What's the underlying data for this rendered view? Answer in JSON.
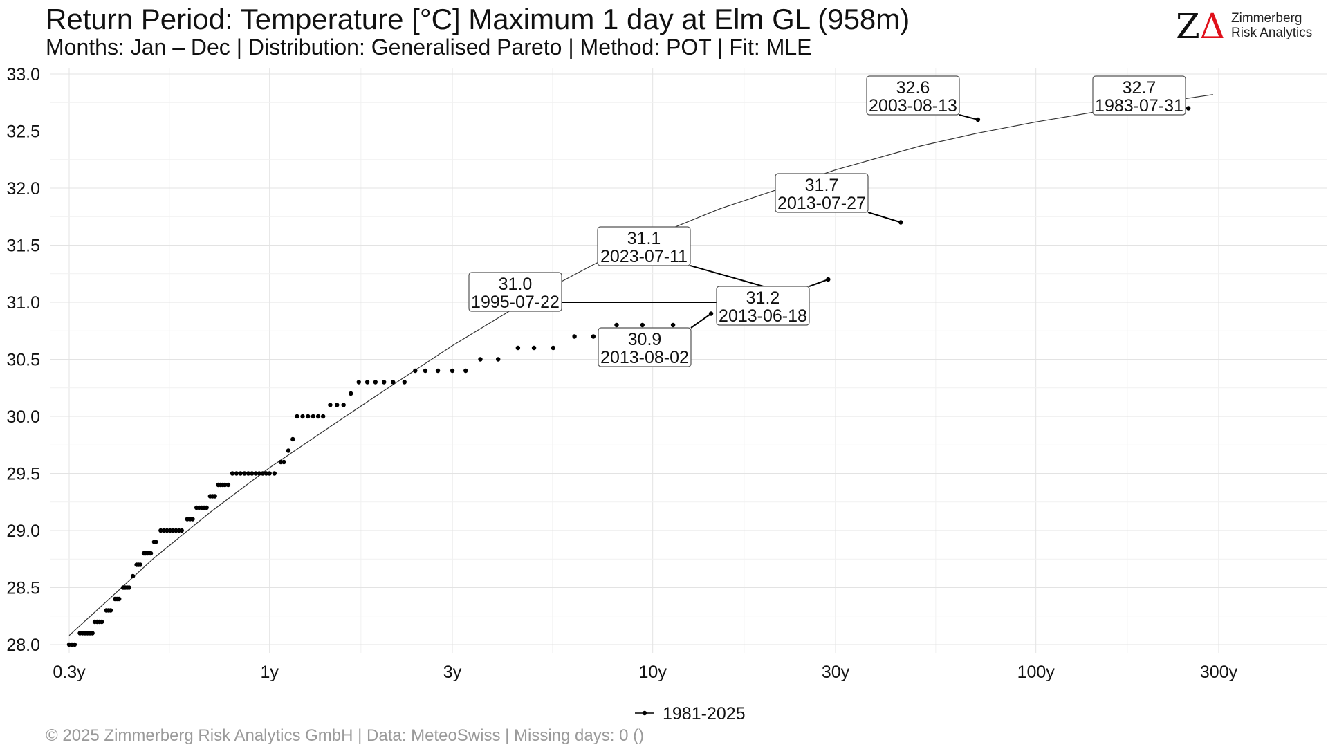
{
  "header": {
    "title": "Return Period: Temperature [°C] Maximum 1 day at Elm  GL (958m)",
    "subtitle": "Months: Jan – Dec | Distribution: Generalised Pareto | Method: POT | Fit: MLE"
  },
  "logo": {
    "mark_z": "Z",
    "mark_delta": "Δ",
    "line1": "Zimmerberg",
    "line2": "Risk Analytics",
    "accent": "#e0101a"
  },
  "footer": {
    "text": "©  2025 Zimmerberg Risk Analytics GmbH | Data: MeteoSwiss | Missing days: 0 ()"
  },
  "chart_data": {
    "type": "scatter",
    "x_scale": "log",
    "xlim": [
      0.28,
      500
    ],
    "ylim": [
      27.95,
      33.05
    ],
    "x_ticks": [
      {
        "value": 0.3,
        "label": "0.3y"
      },
      {
        "value": 1,
        "label": "1y"
      },
      {
        "value": 3,
        "label": "3y"
      },
      {
        "value": 10,
        "label": "10y"
      },
      {
        "value": 30,
        "label": "30y"
      },
      {
        "value": 100,
        "label": "100y"
      },
      {
        "value": 300,
        "label": "300y"
      }
    ],
    "y_ticks": [
      {
        "value": 28.0,
        "label": "28.0"
      },
      {
        "value": 28.5,
        "label": "28.5"
      },
      {
        "value": 29.0,
        "label": "29.0"
      },
      {
        "value": 29.5,
        "label": "29.5"
      },
      {
        "value": 30.0,
        "label": "30.0"
      },
      {
        "value": 30.5,
        "label": "30.5"
      },
      {
        "value": 31.0,
        "label": "31.0"
      },
      {
        "value": 31.5,
        "label": "31.5"
      },
      {
        "value": 32.0,
        "label": "32.0"
      },
      {
        "value": 32.5,
        "label": "32.5"
      },
      {
        "value": 33.0,
        "label": "33.0"
      }
    ],
    "grid": true,
    "legend": {
      "position": "bottom",
      "label": "1981-2025"
    },
    "fit_line": {
      "x": [
        0.3,
        0.5,
        0.7,
        1,
        1.5,
        2,
        3,
        5,
        7,
        10,
        15,
        20,
        30,
        50,
        70,
        100,
        150,
        200,
        290
      ],
      "y": [
        28.08,
        28.76,
        29.16,
        29.55,
        29.95,
        30.23,
        30.62,
        31.07,
        31.33,
        31.58,
        31.82,
        31.96,
        32.16,
        32.37,
        32.48,
        32.58,
        32.68,
        32.74,
        32.82
      ]
    },
    "points": [
      {
        "x": 0.3,
        "y": 28.0
      },
      {
        "x": 0.305,
        "y": 28.0
      },
      {
        "x": 0.31,
        "y": 28.0
      },
      {
        "x": 0.32,
        "y": 28.1
      },
      {
        "x": 0.325,
        "y": 28.1
      },
      {
        "x": 0.33,
        "y": 28.1
      },
      {
        "x": 0.335,
        "y": 28.1
      },
      {
        "x": 0.34,
        "y": 28.1
      },
      {
        "x": 0.345,
        "y": 28.1
      },
      {
        "x": 0.35,
        "y": 28.2
      },
      {
        "x": 0.355,
        "y": 28.2
      },
      {
        "x": 0.36,
        "y": 28.2
      },
      {
        "x": 0.365,
        "y": 28.2
      },
      {
        "x": 0.375,
        "y": 28.3
      },
      {
        "x": 0.38,
        "y": 28.3
      },
      {
        "x": 0.385,
        "y": 28.3
      },
      {
        "x": 0.395,
        "y": 28.4
      },
      {
        "x": 0.4,
        "y": 28.4
      },
      {
        "x": 0.405,
        "y": 28.4
      },
      {
        "x": 0.415,
        "y": 28.5
      },
      {
        "x": 0.42,
        "y": 28.5
      },
      {
        "x": 0.425,
        "y": 28.5
      },
      {
        "x": 0.43,
        "y": 28.5
      },
      {
        "x": 0.44,
        "y": 28.6
      },
      {
        "x": 0.45,
        "y": 28.7
      },
      {
        "x": 0.455,
        "y": 28.7
      },
      {
        "x": 0.46,
        "y": 28.7
      },
      {
        "x": 0.47,
        "y": 28.8
      },
      {
        "x": 0.475,
        "y": 28.8
      },
      {
        "x": 0.48,
        "y": 28.8
      },
      {
        "x": 0.485,
        "y": 28.8
      },
      {
        "x": 0.49,
        "y": 28.8
      },
      {
        "x": 0.5,
        "y": 28.9
      },
      {
        "x": 0.505,
        "y": 28.9
      },
      {
        "x": 0.52,
        "y": 29.0
      },
      {
        "x": 0.53,
        "y": 29.0
      },
      {
        "x": 0.54,
        "y": 29.0
      },
      {
        "x": 0.55,
        "y": 29.0
      },
      {
        "x": 0.56,
        "y": 29.0
      },
      {
        "x": 0.57,
        "y": 29.0
      },
      {
        "x": 0.58,
        "y": 29.0
      },
      {
        "x": 0.59,
        "y": 29.0
      },
      {
        "x": 0.61,
        "y": 29.1
      },
      {
        "x": 0.62,
        "y": 29.1
      },
      {
        "x": 0.63,
        "y": 29.1
      },
      {
        "x": 0.645,
        "y": 29.2
      },
      {
        "x": 0.655,
        "y": 29.2
      },
      {
        "x": 0.665,
        "y": 29.2
      },
      {
        "x": 0.675,
        "y": 29.2
      },
      {
        "x": 0.685,
        "y": 29.2
      },
      {
        "x": 0.7,
        "y": 29.3
      },
      {
        "x": 0.71,
        "y": 29.3
      },
      {
        "x": 0.72,
        "y": 29.3
      },
      {
        "x": 0.735,
        "y": 29.4
      },
      {
        "x": 0.745,
        "y": 29.4
      },
      {
        "x": 0.755,
        "y": 29.4
      },
      {
        "x": 0.765,
        "y": 29.4
      },
      {
        "x": 0.78,
        "y": 29.4
      },
      {
        "x": 0.8,
        "y": 29.5
      },
      {
        "x": 0.82,
        "y": 29.5
      },
      {
        "x": 0.84,
        "y": 29.5
      },
      {
        "x": 0.86,
        "y": 29.5
      },
      {
        "x": 0.88,
        "y": 29.5
      },
      {
        "x": 0.9,
        "y": 29.5
      },
      {
        "x": 0.92,
        "y": 29.5
      },
      {
        "x": 0.94,
        "y": 29.5
      },
      {
        "x": 0.96,
        "y": 29.5
      },
      {
        "x": 0.98,
        "y": 29.5
      },
      {
        "x": 1.0,
        "y": 29.5
      },
      {
        "x": 1.03,
        "y": 29.5
      },
      {
        "x": 1.07,
        "y": 29.6
      },
      {
        "x": 1.09,
        "y": 29.6
      },
      {
        "x": 1.12,
        "y": 29.7
      },
      {
        "x": 1.15,
        "y": 29.8
      },
      {
        "x": 1.18,
        "y": 30.0
      },
      {
        "x": 1.22,
        "y": 30.0
      },
      {
        "x": 1.26,
        "y": 30.0
      },
      {
        "x": 1.3,
        "y": 30.0
      },
      {
        "x": 1.34,
        "y": 30.0
      },
      {
        "x": 1.38,
        "y": 30.0
      },
      {
        "x": 1.44,
        "y": 30.1
      },
      {
        "x": 1.5,
        "y": 30.1
      },
      {
        "x": 1.56,
        "y": 30.1
      },
      {
        "x": 1.63,
        "y": 30.2
      },
      {
        "x": 1.71,
        "y": 30.3
      },
      {
        "x": 1.8,
        "y": 30.3
      },
      {
        "x": 1.89,
        "y": 30.3
      },
      {
        "x": 1.99,
        "y": 30.3
      },
      {
        "x": 2.1,
        "y": 30.3
      },
      {
        "x": 2.25,
        "y": 30.3
      },
      {
        "x": 2.4,
        "y": 30.4
      },
      {
        "x": 2.55,
        "y": 30.4
      },
      {
        "x": 2.75,
        "y": 30.4
      },
      {
        "x": 3.0,
        "y": 30.4
      },
      {
        "x": 3.25,
        "y": 30.4
      },
      {
        "x": 3.55,
        "y": 30.5
      },
      {
        "x": 3.95,
        "y": 30.5
      },
      {
        "x": 4.45,
        "y": 30.6
      },
      {
        "x": 4.9,
        "y": 30.6
      },
      {
        "x": 5.5,
        "y": 30.6
      },
      {
        "x": 6.25,
        "y": 30.7
      },
      {
        "x": 7.0,
        "y": 30.7
      },
      {
        "x": 8.05,
        "y": 30.8
      },
      {
        "x": 9.4,
        "y": 30.8
      },
      {
        "x": 11.3,
        "y": 30.8
      },
      {
        "x": 14.2,
        "y": 30.9
      },
      {
        "x": 18.8,
        "y": 31.0
      },
      {
        "x": 21.4,
        "y": 31.1
      },
      {
        "x": 28.7,
        "y": 31.2
      },
      {
        "x": 44.4,
        "y": 31.7
      },
      {
        "x": 70.6,
        "y": 32.6
      },
      {
        "x": 250,
        "y": 32.7
      }
    ],
    "annotations": [
      {
        "x": 18.8,
        "y": 31.0,
        "value": "31.0",
        "date": "1995-07-22"
      },
      {
        "x": 14.2,
        "y": 30.9,
        "value": "30.9",
        "date": "2013-08-02"
      },
      {
        "x": 21.4,
        "y": 31.1,
        "value": "31.1",
        "date": "2023-07-11"
      },
      {
        "x": 28.7,
        "y": 31.2,
        "value": "31.2",
        "date": "2013-06-18"
      },
      {
        "x": 44.4,
        "y": 31.7,
        "value": "31.7",
        "date": "2013-07-27"
      },
      {
        "x": 70.6,
        "y": 32.6,
        "value": "32.6",
        "date": "2003-08-13"
      },
      {
        "x": 250,
        "y": 32.7,
        "value": "32.7",
        "date": "1983-07-31"
      }
    ]
  }
}
